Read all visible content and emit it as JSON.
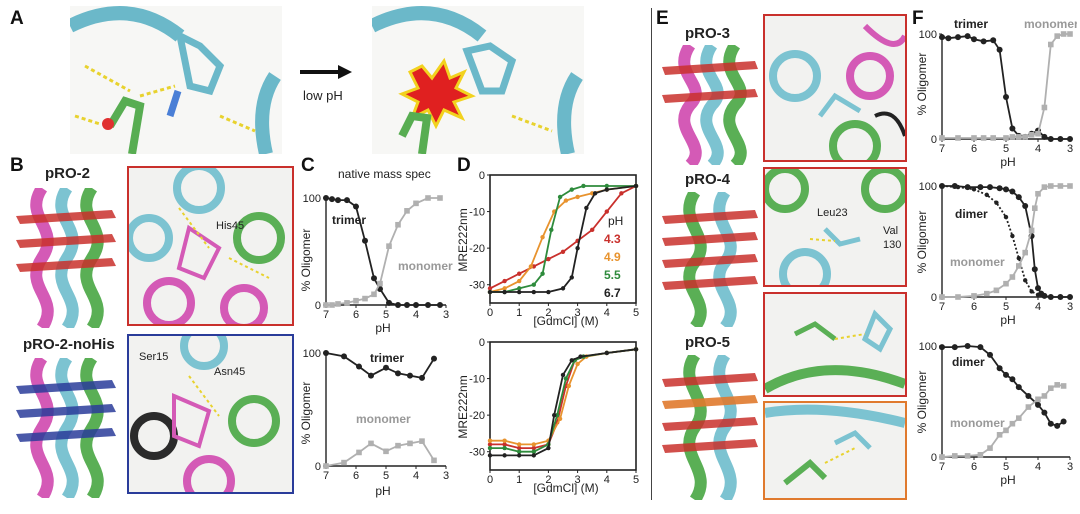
{
  "panels": {
    "a": "A",
    "b": "B",
    "c": "C",
    "d": "D",
    "e": "E",
    "f": "F"
  },
  "panel_a": {
    "arrow_label": "low pH"
  },
  "panel_b": {
    "top_name": "pRO-2",
    "bottom_name": "pRO-2-noHis",
    "top_residue": "His45",
    "bottom_residues": [
      "Ser15",
      "Asn45"
    ]
  },
  "panel_e": {
    "names": [
      "pRO-3",
      "pRO-4",
      "pRO-5"
    ],
    "residues": [
      "Leu23",
      "Val",
      "130"
    ]
  },
  "colors": {
    "trimer_dimer": "#222222",
    "monomer": "#b0b0b0",
    "ph43": "#c9302c",
    "ph49": "#e8932e",
    "ph55": "#2e8b3c",
    "ph67": "#222222",
    "frame_red": "#c9302c",
    "frame_blue": "#2a3c9a",
    "frame_orange": "#e07a2e"
  },
  "chart_data": [
    {
      "id": "C-top",
      "type": "line",
      "title": "native mass spec",
      "xlabel": "pH",
      "ylabel": "% Oligomer",
      "xlim": [
        7,
        3
      ],
      "ylim": [
        0,
        100
      ],
      "xticks": [
        7,
        6,
        5,
        4,
        3
      ],
      "yticks": [
        0,
        100
      ],
      "series": [
        {
          "name": "trimer",
          "x": [
            7,
            6.8,
            6.6,
            6.3,
            6.0,
            5.7,
            5.4,
            5.2,
            4.9,
            4.6,
            4.3,
            4.0,
            3.6,
            3.2
          ],
          "y": [
            100,
            99,
            98,
            98,
            92,
            60,
            25,
            15,
            2,
            0,
            0,
            0,
            0,
            0
          ]
        },
        {
          "name": "monomer",
          "x": [
            7,
            6.8,
            6.6,
            6.3,
            6.0,
            5.7,
            5.4,
            5.2,
            4.9,
            4.6,
            4.3,
            4.0,
            3.6,
            3.2
          ],
          "y": [
            0,
            0,
            1,
            2,
            4,
            6,
            10,
            20,
            55,
            75,
            88,
            95,
            100,
            100
          ]
        }
      ]
    },
    {
      "id": "C-bottom",
      "type": "line",
      "xlabel": "pH",
      "ylabel": "% Oligomer",
      "xlim": [
        7,
        3
      ],
      "ylim": [
        0,
        100
      ],
      "xticks": [
        7,
        6,
        5,
        4,
        3
      ],
      "yticks": [
        0,
        100
      ],
      "series": [
        {
          "name": "trimer",
          "x": [
            7,
            6.4,
            5.9,
            5.5,
            5.0,
            4.6,
            4.2,
            3.8,
            3.4
          ],
          "y": [
            100,
            97,
            88,
            80,
            87,
            82,
            80,
            78,
            95
          ]
        },
        {
          "name": "monomer",
          "x": [
            7,
            6.4,
            5.9,
            5.5,
            5.0,
            4.6,
            4.2,
            3.8,
            3.4
          ],
          "y": [
            0,
            3,
            12,
            20,
            13,
            18,
            20,
            22,
            5
          ]
        }
      ]
    },
    {
      "id": "D-top",
      "type": "line",
      "xlabel": "[GdmCl] (M)",
      "ylabel": "MRE222nm",
      "xlim": [
        0,
        5
      ],
      "ylim": [
        -35,
        0
      ],
      "xticks": [
        0,
        1,
        2,
        3,
        4,
        5
      ],
      "yticks": [
        0,
        -10,
        -20,
        -30
      ],
      "legend_title": "pH",
      "series": [
        {
          "name": "4.3",
          "x": [
            0,
            0.5,
            1.0,
            1.5,
            2.0,
            2.5,
            3.0,
            3.5,
            4.0,
            4.5,
            5.0
          ],
          "y": [
            -31,
            -29,
            -27,
            -25,
            -23,
            -21,
            -18,
            -15,
            -10,
            -5,
            -3
          ]
        },
        {
          "name": "4.9",
          "x": [
            0,
            0.5,
            1.0,
            1.4,
            1.8,
            2.2,
            2.6,
            3.0,
            3.5,
            4.0,
            5.0
          ],
          "y": [
            -32,
            -31,
            -29,
            -25,
            -17,
            -10,
            -7,
            -6,
            -5,
            -4,
            -3
          ]
        },
        {
          "name": "5.5",
          "x": [
            0,
            0.5,
            1.0,
            1.5,
            1.8,
            2.1,
            2.4,
            2.8,
            3.2,
            4.0,
            5.0
          ],
          "y": [
            -32,
            -32,
            -31,
            -30,
            -27,
            -15,
            -6,
            -4,
            -3,
            -3,
            -3
          ]
        },
        {
          "name": "6.7",
          "x": [
            0,
            0.5,
            1.0,
            1.5,
            2.0,
            2.5,
            2.8,
            3.0,
            3.3,
            3.6,
            4.0,
            5.0
          ],
          "y": [
            -32,
            -32,
            -32,
            -32,
            -32,
            -31,
            -28,
            -20,
            -9,
            -5,
            -4,
            -3
          ]
        }
      ]
    },
    {
      "id": "D-bottom",
      "type": "line",
      "xlabel": "[GdmCl] (M)",
      "ylabel": "MRE222nm",
      "xlim": [
        0,
        5
      ],
      "ylim": [
        -35,
        0
      ],
      "xticks": [
        0,
        1,
        2,
        3,
        4,
        5
      ],
      "yticks": [
        0,
        -10,
        -20,
        -30
      ],
      "series": [
        {
          "name": "4.3",
          "x": [
            0,
            0.5,
            1.0,
            1.5,
            2.0,
            2.3,
            2.6,
            2.9,
            3.2,
            4.0,
            5.0
          ],
          "y": [
            -28,
            -28,
            -29,
            -29,
            -28,
            -22,
            -12,
            -5,
            -4,
            -3,
            -2
          ]
        },
        {
          "name": "4.9",
          "x": [
            0,
            0.5,
            1.0,
            1.5,
            2.0,
            2.4,
            2.7,
            3.0,
            3.3,
            4.0,
            5.0
          ],
          "y": [
            -27,
            -27,
            -28,
            -28,
            -27,
            -21,
            -12,
            -6,
            -4,
            -3,
            -2
          ]
        },
        {
          "name": "5.5",
          "x": [
            0,
            0.5,
            1.0,
            1.5,
            2.0,
            2.3,
            2.6,
            2.9,
            3.2,
            4.0,
            5.0
          ],
          "y": [
            -29,
            -29,
            -30,
            -30,
            -28,
            -20,
            -10,
            -5,
            -4,
            -3,
            -2
          ]
        },
        {
          "name": "6.7",
          "x": [
            0,
            0.5,
            1.0,
            1.5,
            2.0,
            2.2,
            2.5,
            2.8,
            3.1,
            4.0,
            5.0
          ],
          "y": [
            -31,
            -31,
            -31,
            -31,
            -29,
            -20,
            -9,
            -5,
            -4,
            -3,
            -2
          ]
        }
      ]
    },
    {
      "id": "F-1",
      "type": "line",
      "xlabel": "pH",
      "ylabel": "% Oligomer",
      "xlim": [
        7,
        3
      ],
      "ylim": [
        0,
        100
      ],
      "xticks": [
        7,
        6,
        5,
        4,
        3
      ],
      "yticks": [
        0,
        100
      ],
      "series": [
        {
          "name": "trimer",
          "x": [
            7,
            6.8,
            6.5,
            6.2,
            6.0,
            5.7,
            5.4,
            5.2,
            5.0,
            4.8,
            4.6,
            4.4,
            4.2,
            4.0,
            3.8,
            3.6,
            3.3,
            3.0
          ],
          "y": [
            97,
            96,
            97,
            98,
            95,
            93,
            94,
            85,
            40,
            10,
            3,
            2,
            5,
            8,
            2,
            0,
            0,
            0
          ]
        },
        {
          "name": "monomer",
          "x": [
            7,
            6.5,
            6.0,
            5.7,
            5.4,
            5.0,
            4.8,
            4.6,
            4.4,
            4.2,
            4.0,
            3.8,
            3.6,
            3.4,
            3.2,
            3.0
          ],
          "y": [
            1,
            1,
            1,
            1,
            1,
            1,
            2,
            2,
            2,
            4,
            5,
            30,
            90,
            98,
            100,
            100
          ]
        }
      ]
    },
    {
      "id": "F-2",
      "type": "line",
      "xlabel": "pH",
      "ylabel": "% Oligomer",
      "xlim": [
        7,
        3
      ],
      "ylim": [
        0,
        100
      ],
      "xticks": [
        7,
        6,
        5,
        4,
        3
      ],
      "yticks": [
        0,
        100
      ],
      "series": [
        {
          "name": "dimer",
          "x": [
            7,
            6.6,
            6.2,
            5.8,
            5.5,
            5.2,
            5.0,
            4.8,
            4.6,
            4.4,
            4.2,
            4.1,
            4.0,
            3.9,
            3.8,
            3.6,
            3.3,
            3.0
          ],
          "y": [
            100,
            100,
            99,
            99,
            99,
            98,
            97,
            95,
            90,
            82,
            55,
            25,
            8,
            3,
            1,
            0,
            0,
            0
          ]
        },
        {
          "name": "dimer-dotted",
          "x": [
            7,
            6.5,
            6.0,
            5.6,
            5.3,
            5.0,
            4.8,
            4.6,
            4.4,
            4.2,
            4.0,
            3.8,
            3.6
          ],
          "y": [
            100,
            99,
            97,
            92,
            85,
            72,
            55,
            35,
            15,
            5,
            2,
            1,
            0
          ]
        },
        {
          "name": "monomer",
          "x": [
            7,
            6.5,
            6.0,
            5.6,
            5.3,
            5.0,
            4.8,
            4.6,
            4.4,
            4.2,
            4.1,
            4.0,
            3.8,
            3.6,
            3.3,
            3.0
          ],
          "y": [
            0,
            0,
            1,
            3,
            6,
            12,
            18,
            28,
            40,
            60,
            80,
            93,
            99,
            100,
            100,
            100
          ]
        }
      ]
    },
    {
      "id": "F-3",
      "type": "line",
      "xlabel": "pH",
      "ylabel": "% Oligomer",
      "xlim": [
        7,
        3
      ],
      "ylim": [
        0,
        100
      ],
      "xticks": [
        7,
        6,
        5,
        4,
        3
      ],
      "yticks": [
        0,
        100
      ],
      "series": [
        {
          "name": "dimer",
          "x": [
            7,
            6.6,
            6.2,
            5.8,
            5.5,
            5.2,
            5.0,
            4.8,
            4.6,
            4.3,
            4.0,
            3.8,
            3.6,
            3.4,
            3.2
          ],
          "y": [
            99,
            99,
            100,
            99,
            92,
            80,
            74,
            70,
            63,
            55,
            47,
            40,
            30,
            28,
            32
          ]
        },
        {
          "name": "monomer",
          "x": [
            7,
            6.6,
            6.2,
            5.8,
            5.5,
            5.2,
            5.0,
            4.8,
            4.6,
            4.3,
            4.0,
            3.8,
            3.6,
            3.4,
            3.2
          ],
          "y": [
            0,
            1,
            1,
            2,
            8,
            20,
            24,
            30,
            35,
            45,
            52,
            55,
            62,
            65,
            64
          ]
        }
      ]
    }
  ],
  "series_labels": {
    "c_top_trimer": "trimer",
    "c_top_monomer": "monomer",
    "c_bot_trimer": "trimer",
    "c_bot_monomer": "monomer",
    "f1_trimer": "trimer",
    "f1_monomer": "monomer",
    "f2_dimer": "dimer",
    "f2_monomer": "monomer",
    "f3_dimer": "dimer",
    "f3_monomer": "monomer"
  }
}
